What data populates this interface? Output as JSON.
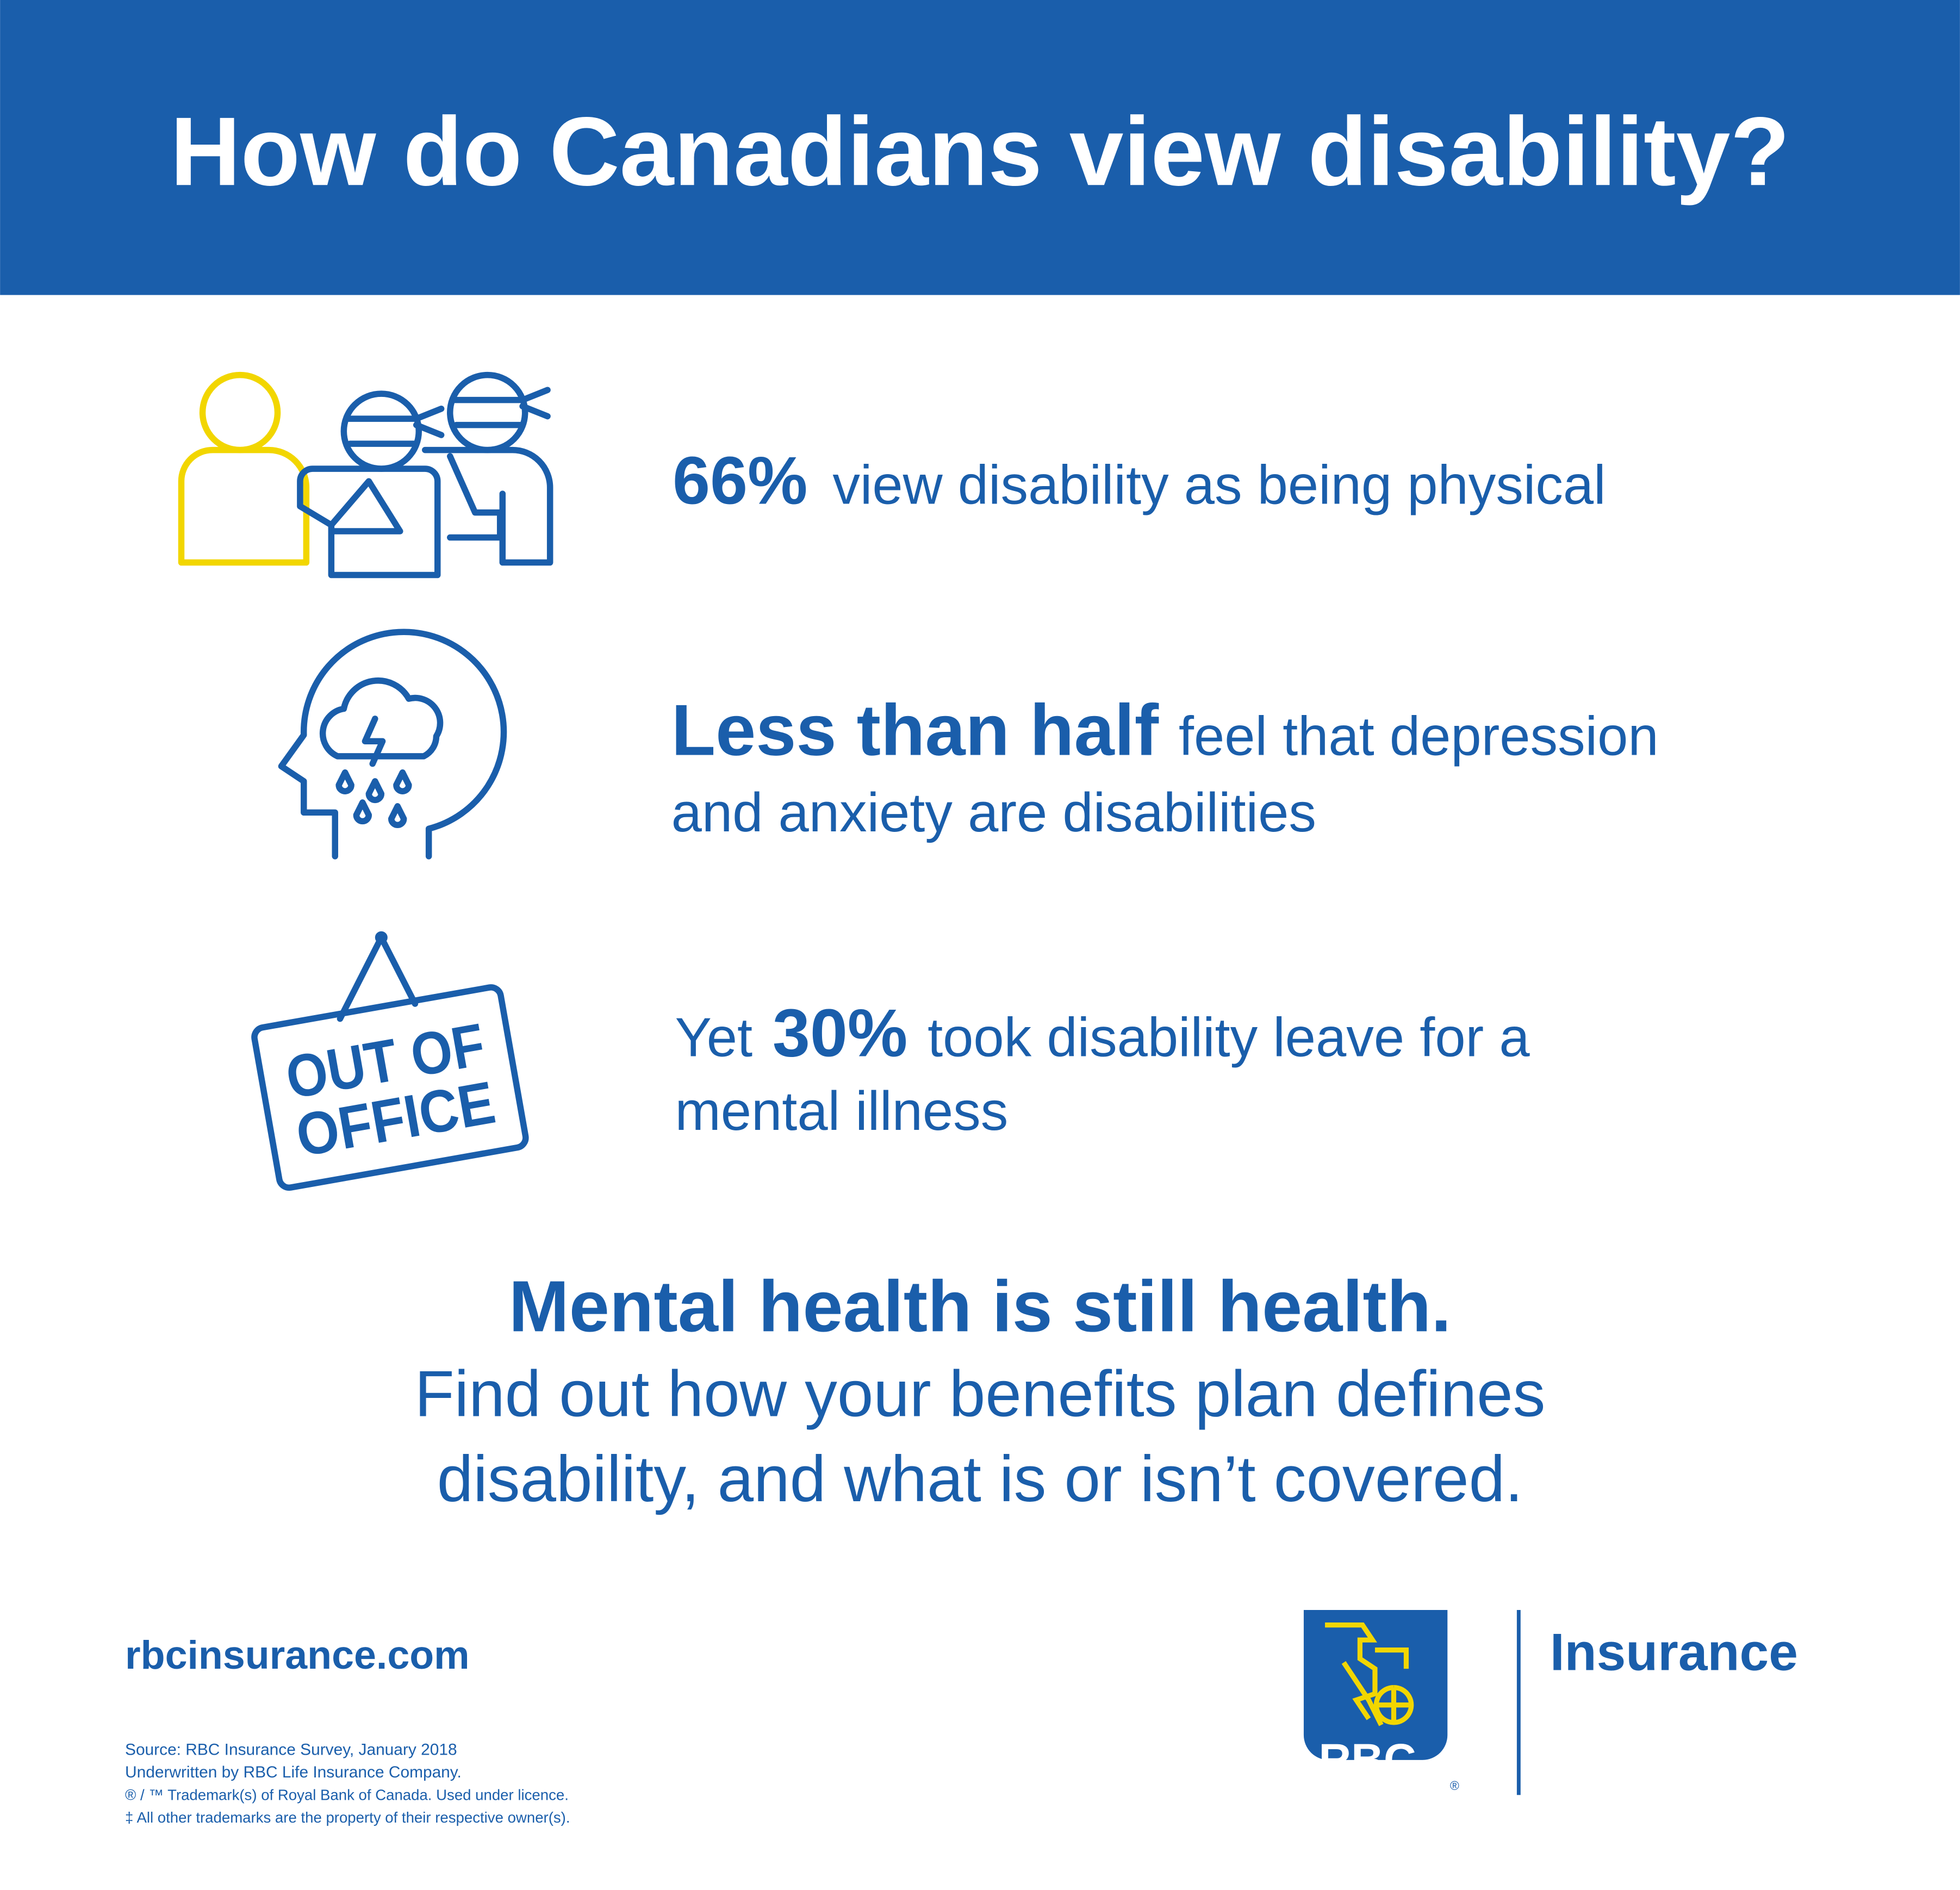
{
  "header": {
    "title": "How do Canadians view disability?"
  },
  "stats": [
    {
      "bold": "66%",
      "rest": "view disability as being physical"
    },
    {
      "bold": "Less than half",
      "rest": "feel that depression",
      "line2": "and anxiety are disabilities"
    },
    {
      "prefix": "Yet",
      "bold": "30%",
      "rest": "took disability leave for a",
      "line2": "mental illness"
    }
  ],
  "icons": {
    "sign": [
      "OUT OF",
      "OFFICE"
    ]
  },
  "closing": {
    "headline": "Mental health is still health.",
    "lines": [
      "Find out how your benefits plan defines",
      "disability, and what is or isn’t covered."
    ]
  },
  "footer": {
    "url": "rbcinsurance.com",
    "notes": [
      "Source: RBC Insurance Survey, January 2018",
      "Underwritten by RBC Life Insurance Company.",
      "® / ™ Trademark(s) of Royal Bank of Canada. Used under licence.",
      "‡ All other trademarks are the property of their respective owner(s)."
    ]
  },
  "logo": {
    "mark": "RBC",
    "name": "Insurance"
  }
}
